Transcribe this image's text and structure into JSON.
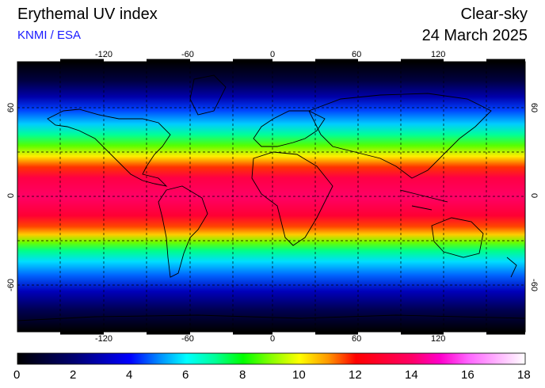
{
  "header": {
    "title": "Erythemal UV index",
    "credit": "KNMI / ESA",
    "mode": "Clear-sky",
    "date": "24 March 2025"
  },
  "map": {
    "projection": "equirectangular",
    "lon_ticks": [
      "-120",
      "-60",
      "0",
      "60",
      "120"
    ],
    "lat_ticks": [
      "60",
      "0",
      "-60"
    ],
    "gridlines": "dashed",
    "background": "#000000"
  },
  "colorbar": {
    "labels": [
      "0",
      "2",
      "4",
      "6",
      "8",
      "10",
      "12",
      "14",
      "16",
      "18"
    ],
    "min": 0,
    "max": 18,
    "stops": [
      {
        "value": 0,
        "color": "#000000"
      },
      {
        "value": 2,
        "color": "#000070"
      },
      {
        "value": 4,
        "color": "#0000ff"
      },
      {
        "value": 5,
        "color": "#0088ff"
      },
      {
        "value": 6,
        "color": "#00ffff"
      },
      {
        "value": 7,
        "color": "#00ff99"
      },
      {
        "value": 8,
        "color": "#00ff00"
      },
      {
        "value": 9,
        "color": "#88ff00"
      },
      {
        "value": 10,
        "color": "#ffff00"
      },
      {
        "value": 11,
        "color": "#ff9900"
      },
      {
        "value": 12,
        "color": "#ff0000"
      },
      {
        "value": 14,
        "color": "#ff0066"
      },
      {
        "value": 15,
        "color": "#ff00cc"
      },
      {
        "value": 16,
        "color": "#ff66ff"
      },
      {
        "value": 18,
        "color": "#ffffff"
      }
    ]
  }
}
